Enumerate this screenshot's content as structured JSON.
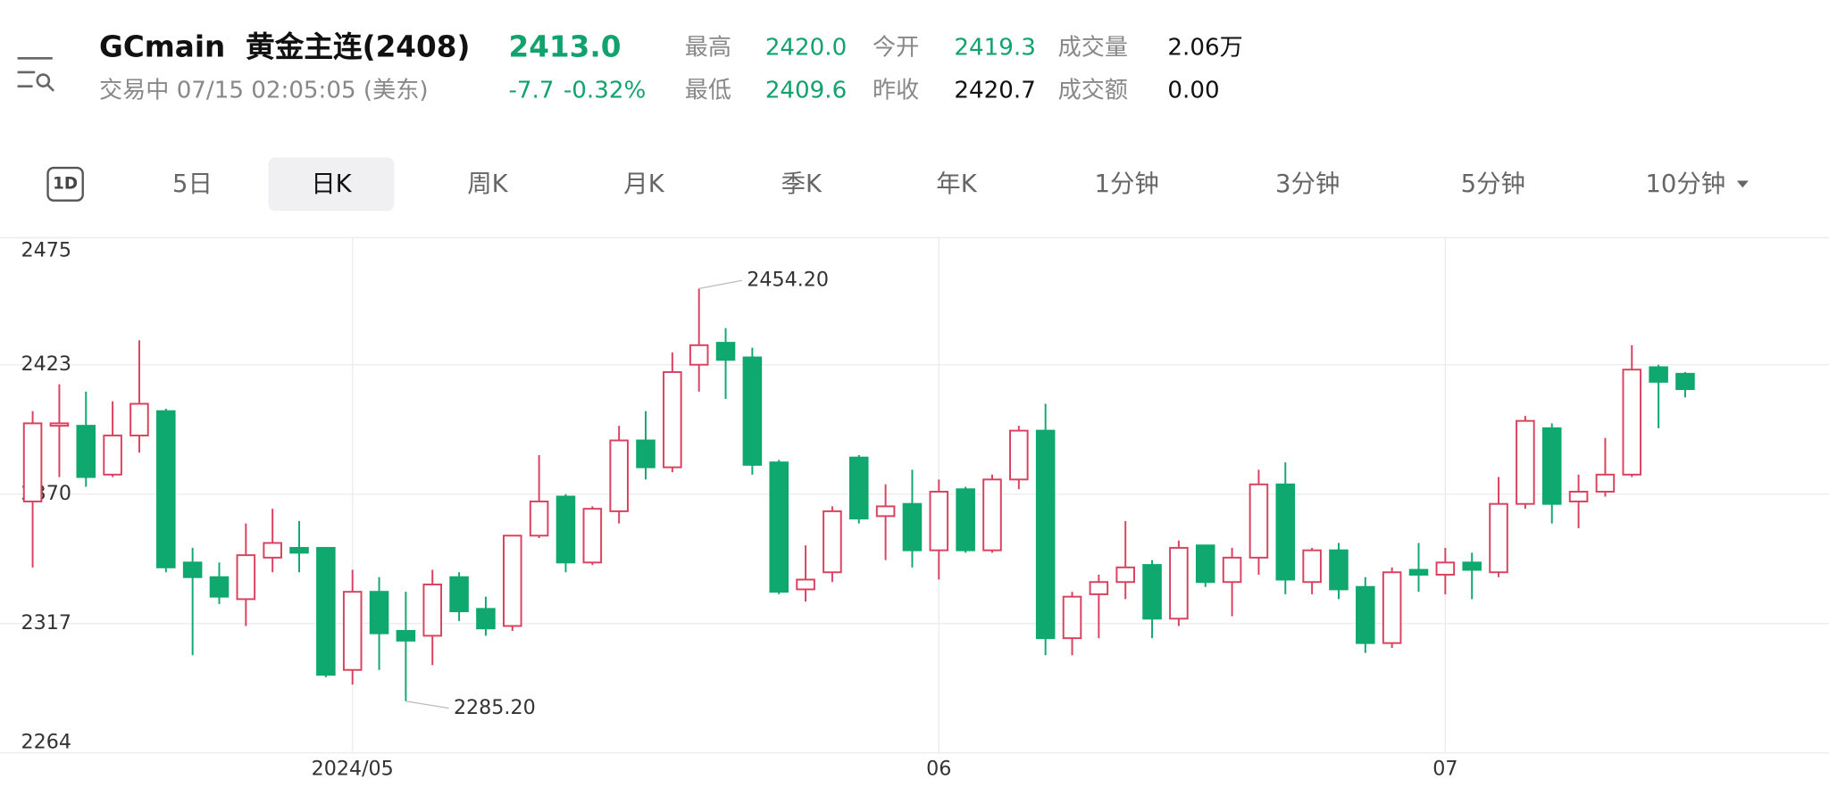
{
  "header": {
    "symbol": "GCmain",
    "name": "黄金主连(2408)",
    "price": "2413.0",
    "status": "交易中 07/15 02:05:05 (美东)",
    "change": "-7.7",
    "change_pct": "-0.32%",
    "stats": [
      {
        "label": "最高",
        "value": "2420.0"
      },
      {
        "label": "最低",
        "value": "2409.6"
      },
      {
        "label": "今开",
        "value": "2419.3"
      },
      {
        "label": "昨收",
        "value": "2420.7"
      },
      {
        "label": "成交量",
        "value": "2.06万"
      },
      {
        "label": "成交额",
        "value": "0.00"
      }
    ]
  },
  "tabs": [
    "1D",
    "5日",
    "日K",
    "周K",
    "月K",
    "季K",
    "年K",
    "1分钟",
    "3分钟",
    "5分钟",
    "10分钟"
  ],
  "chart_data": {
    "type": "candlestick",
    "up_color": "#d9415f",
    "down_color": "#0fa86e",
    "grid": true,
    "ylim": [
      2264,
      2475
    ],
    "yticks": [
      2264,
      2317,
      2370,
      2423,
      2475
    ],
    "annotations": {
      "high": "2454.20",
      "low": "2285.20"
    },
    "categories": [
      null,
      null,
      null,
      null,
      null,
      null,
      null,
      null,
      null,
      null,
      null,
      null,
      "2024/05",
      null,
      null,
      null,
      null,
      null,
      null,
      null,
      null,
      null,
      null,
      null,
      null,
      null,
      null,
      null,
      null,
      null,
      null,
      null,
      null,
      null,
      "06",
      null,
      null,
      null,
      null,
      null,
      null,
      null,
      null,
      null,
      null,
      null,
      null,
      null,
      null,
      null,
      null,
      null,
      null,
      "07",
      null,
      null,
      null,
      null,
      null,
      null,
      null,
      null,
      null
    ],
    "open": [
      2367,
      2398,
      2398,
      2378,
      2394,
      2404,
      2342,
      2336,
      2327,
      2344,
      2348,
      2348,
      2298,
      2330,
      2314,
      2312,
      2336,
      2323,
      2316,
      2353,
      2369,
      2342,
      2363,
      2392,
      2381,
      2423,
      2432,
      2426,
      2383,
      2331,
      2338,
      2385,
      2361,
      2366,
      2347,
      2372,
      2347,
      2376,
      2396,
      2311,
      2329,
      2334,
      2341,
      2319,
      2349,
      2334,
      2344,
      2374,
      2334,
      2347,
      2332,
      2309,
      2339,
      2337,
      2342,
      2338,
      2366,
      2397,
      2367,
      2371,
      2378,
      2422,
      2419.3
    ],
    "high": [
      2404,
      2415,
      2412,
      2408,
      2433,
      2405,
      2348,
      2342,
      2358,
      2364,
      2359,
      2348,
      2339,
      2336,
      2330,
      2339,
      2338,
      2328,
      2353,
      2386,
      2370,
      2365,
      2398,
      2404,
      2428,
      2454.2,
      2438,
      2430,
      2384,
      2349,
      2365,
      2386,
      2374,
      2380,
      2376,
      2373,
      2378,
      2398,
      2407,
      2330,
      2337,
      2359,
      2343,
      2351,
      2349,
      2348,
      2380,
      2383,
      2348,
      2350,
      2336,
      2340,
      2350,
      2348,
      2346,
      2377,
      2402,
      2399,
      2378,
      2393,
      2431,
      2423,
      2420
    ],
    "low": [
      2340,
      2377,
      2373,
      2377,
      2387,
      2338,
      2304,
      2325,
      2316,
      2338,
      2338,
      2295,
      2292,
      2298,
      2285.2,
      2300,
      2318,
      2312,
      2314,
      2352,
      2338,
      2341,
      2358,
      2376,
      2379,
      2412,
      2409,
      2378,
      2329,
      2326,
      2334,
      2358,
      2343,
      2340,
      2335,
      2346,
      2346,
      2372,
      2304,
      2304,
      2311,
      2327,
      2311,
      2316,
      2332,
      2320,
      2337,
      2329,
      2329,
      2327,
      2305,
      2307,
      2330,
      2329,
      2327,
      2336,
      2364,
      2358,
      2356,
      2369,
      2377,
      2397,
      2409.6
    ],
    "close": [
      2399,
      2399,
      2377,
      2394,
      2407,
      2340,
      2336,
      2328,
      2345,
      2350,
      2346,
      2296,
      2330,
      2313,
      2310,
      2333,
      2322,
      2315,
      2353,
      2367,
      2342,
      2364,
      2392,
      2381,
      2420,
      2431,
      2425,
      2382,
      2330,
      2335,
      2363,
      2360,
      2365,
      2347,
      2371,
      2347,
      2376,
      2396,
      2311,
      2328,
      2334,
      2340,
      2319,
      2348,
      2334,
      2344,
      2374,
      2335,
      2347,
      2331,
      2309,
      2338,
      2337,
      2342,
      2339,
      2366,
      2400,
      2366,
      2371,
      2378,
      2421,
      2416,
      2413
    ]
  }
}
